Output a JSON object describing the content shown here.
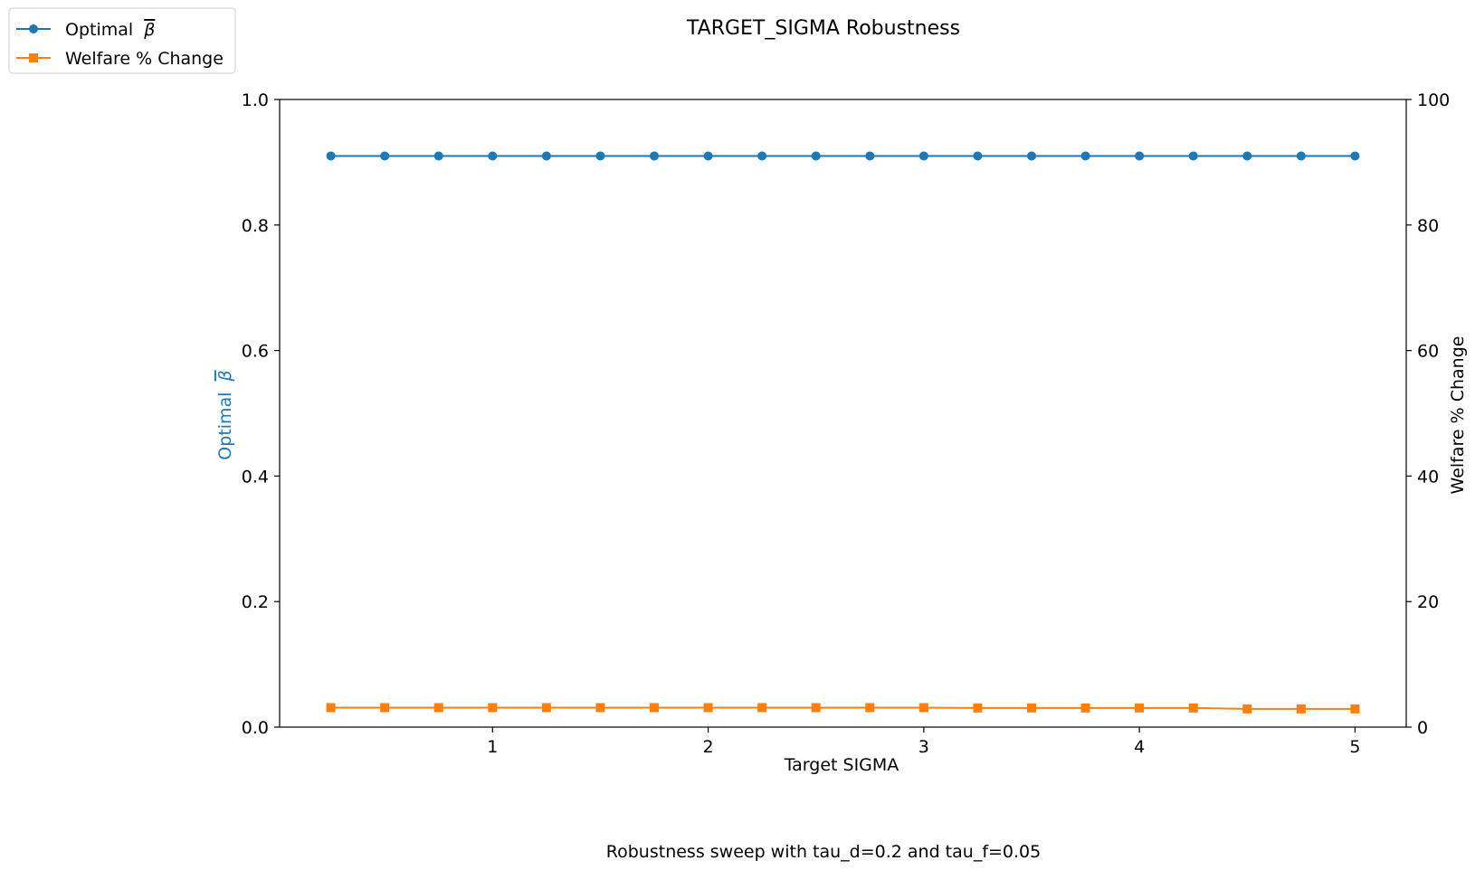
{
  "chart_data": {
    "type": "line",
    "title": "TARGET_SIGMA Robustness",
    "caption": "Robustness sweep with tau_d=0.2 and tau_f=0.05",
    "xlabel": "Target SIGMA",
    "ylabel_left": "Optimal",
    "ylabel_left_symbol": "β",
    "ylabel_right": "Welfare % Change",
    "xlim": [
      0.0125,
      5.2375
    ],
    "ylim_left": [
      0,
      1
    ],
    "ylim_right": [
      0,
      100
    ],
    "x_ticks": [
      1,
      2,
      3,
      4,
      5
    ],
    "x_tick_labels": [
      "1",
      "2",
      "3",
      "4",
      "5"
    ],
    "y_left_ticks": [
      0.0,
      0.2,
      0.4,
      0.6,
      0.8,
      1.0
    ],
    "y_left_tick_labels": [
      "0.0",
      "0.2",
      "0.4",
      "0.6",
      "0.8",
      "1.0"
    ],
    "y_right_ticks": [
      0,
      20,
      40,
      60,
      80,
      100
    ],
    "y_right_tick_labels": [
      "0",
      "20",
      "40",
      "60",
      "80",
      "100"
    ],
    "grid": false,
    "legend_position": "top-left",
    "x": [
      0.25,
      0.5,
      0.75,
      1.0,
      1.25,
      1.5,
      1.75,
      2.0,
      2.25,
      2.5,
      2.75,
      3.0,
      3.25,
      3.5,
      3.75,
      4.0,
      4.25,
      4.5,
      4.75,
      5.0
    ],
    "series": [
      {
        "name": "Optimal",
        "name_symbol": "β",
        "axis": "left",
        "marker": "circle",
        "color": "#1f77b4",
        "values": [
          0.91,
          0.91,
          0.91,
          0.91,
          0.91,
          0.91,
          0.91,
          0.91,
          0.91,
          0.91,
          0.91,
          0.91,
          0.91,
          0.91,
          0.91,
          0.91,
          0.91,
          0.91,
          0.91,
          0.91
        ]
      },
      {
        "name": "Welfare % Change",
        "axis": "right",
        "marker": "square",
        "color": "#ff7f0e",
        "values": [
          3.1,
          3.1,
          3.1,
          3.1,
          3.1,
          3.1,
          3.1,
          3.1,
          3.1,
          3.1,
          3.1,
          3.1,
          3.05,
          3.05,
          3.05,
          3.05,
          3.05,
          2.9,
          2.9,
          2.9
        ]
      }
    ]
  }
}
